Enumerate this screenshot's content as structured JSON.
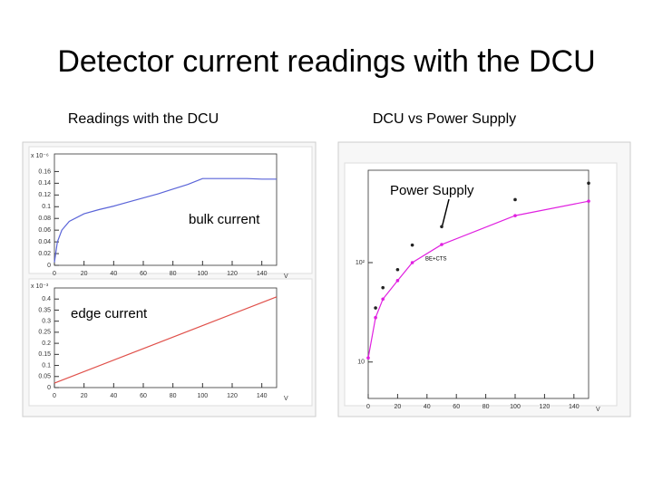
{
  "title": "Detector current readings with the DCU",
  "chart_data": [
    {
      "type": "line",
      "title": "Readings with the DCU",
      "annotation": "bulk current",
      "y_multiplier": "x 10⁻⁶",
      "x_label": "V",
      "xlim": [
        0,
        150
      ],
      "xticks": [
        0,
        20,
        40,
        60,
        80,
        100,
        120,
        140
      ],
      "ylim": [
        0,
        0.19
      ],
      "yticks": [
        0,
        0.02,
        0.04,
        0.06,
        0.08,
        0.1,
        0.12,
        0.14,
        0.16
      ],
      "series": [
        {
          "color": "#5a64d8",
          "show_line": true,
          "show_markers": false,
          "x": [
            0,
            2,
            5,
            10,
            20,
            30,
            40,
            50,
            60,
            70,
            80,
            90,
            100,
            110,
            120,
            130,
            140,
            150
          ],
          "values": [
            0.005,
            0.04,
            0.06,
            0.075,
            0.088,
            0.095,
            0.101,
            0.108,
            0.115,
            0.122,
            0.13,
            0.138,
            0.148,
            0.148,
            0.148,
            0.148,
            0.147,
            0.147
          ]
        }
      ]
    },
    {
      "type": "line",
      "annotation": "edge current",
      "y_multiplier": "x 10⁻³",
      "x_label": "V",
      "xlim": [
        0,
        150
      ],
      "xticks": [
        0,
        20,
        40,
        60,
        80,
        100,
        120,
        140
      ],
      "ylim": [
        0,
        0.45
      ],
      "yticks": [
        0,
        0.05,
        0.1,
        0.15,
        0.2,
        0.25,
        0.3,
        0.35,
        0.4
      ],
      "series": [
        {
          "color": "#e0504a",
          "show_line": true,
          "show_markers": false,
          "x": [
            0,
            50,
            100,
            150
          ],
          "values": [
            0.02,
            0.15,
            0.28,
            0.41
          ]
        }
      ]
    },
    {
      "type": "line",
      "title": "DCU vs Power Supply",
      "annotation": "Power Supply",
      "x_label": "V",
      "log_y": true,
      "xlim": [
        0,
        150
      ],
      "xticks": [
        0,
        20,
        40,
        60,
        80,
        100,
        120,
        140
      ],
      "ylim": [
        4.3,
        850
      ],
      "yticks": [
        10,
        {
          "value": 100,
          "label": "10²"
        }
      ],
      "series": [
        {
          "name": "BE+CTS",
          "color": "#e020e0",
          "show_line": true,
          "show_markers": true,
          "x": [
            0,
            5,
            10,
            20,
            30,
            50,
            100,
            150
          ],
          "values": [
            11,
            28,
            43,
            66,
            100,
            152,
            297,
            415
          ]
        },
        {
          "color": "#222222",
          "show_line": false,
          "show_markers": true,
          "x": [
            5,
            10,
            20,
            30,
            50,
            100,
            150
          ],
          "values": [
            35,
            56,
            85,
            150,
            230,
            430,
            630
          ]
        }
      ]
    }
  ]
}
